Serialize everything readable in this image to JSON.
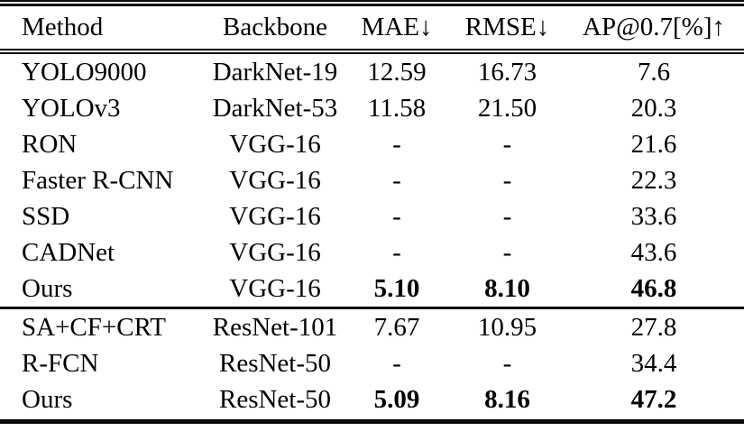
{
  "table": {
    "kind": "results-comparison-table",
    "columns": [
      "Method",
      "Backbone",
      "MAE↓",
      "RMSE↓",
      "AP@0.7[%]↑"
    ],
    "groups": [
      {
        "rows": [
          {
            "method": "YOLO9000",
            "backbone": "DarkNet-19",
            "mae": "12.59",
            "rmse": "16.73",
            "ap": "7.6",
            "bold_metrics": false
          },
          {
            "method": "YOLOv3",
            "backbone": "DarkNet-53",
            "mae": "11.58",
            "rmse": "21.50",
            "ap": "20.3",
            "bold_metrics": false
          },
          {
            "method": "RON",
            "backbone": "VGG-16",
            "mae": "-",
            "rmse": "-",
            "ap": "21.6",
            "bold_metrics": false
          },
          {
            "method": "Faster R-CNN",
            "backbone": "VGG-16",
            "mae": "-",
            "rmse": "-",
            "ap": "22.3",
            "bold_metrics": false
          },
          {
            "method": "SSD",
            "backbone": "VGG-16",
            "mae": "-",
            "rmse": "-",
            "ap": "33.6",
            "bold_metrics": false
          },
          {
            "method": "CADNet",
            "backbone": "VGG-16",
            "mae": "-",
            "rmse": "-",
            "ap": "43.6",
            "bold_metrics": false
          },
          {
            "method": "Ours",
            "backbone": "VGG-16",
            "mae": "5.10",
            "rmse": "8.10",
            "ap": "46.8",
            "bold_metrics": true
          }
        ]
      },
      {
        "rows": [
          {
            "method": "SA+CF+CRT",
            "backbone": "ResNet-101",
            "mae": "7.67",
            "rmse": "10.95",
            "ap": "27.8",
            "bold_metrics": false
          },
          {
            "method": "R-FCN",
            "backbone": "ResNet-50",
            "mae": "-",
            "rmse": "-",
            "ap": "34.4",
            "bold_metrics": false
          },
          {
            "method": "Ours",
            "backbone": "ResNet-50",
            "mae": "5.09",
            "rmse": "8.16",
            "ap": "47.2",
            "bold_metrics": true
          }
        ]
      }
    ],
    "colors": {
      "text": "#000000",
      "background": "#ffffff",
      "rule": "#0a0a0a"
    }
  }
}
